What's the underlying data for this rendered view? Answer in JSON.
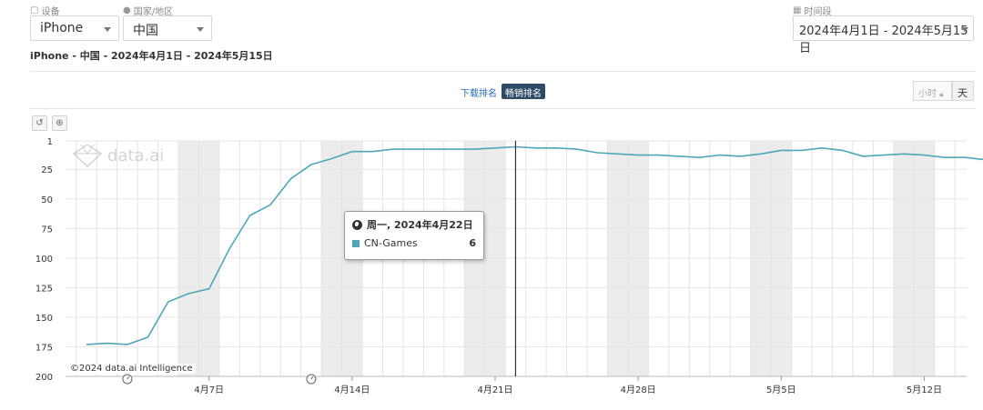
{
  "filters": {
    "device_label": "设备",
    "device_value": "iPhone",
    "country_label": "国家/地区",
    "country_value": "中国",
    "period_label": "时间段",
    "period_value": "2024年4月1日 - 2024年5月15日"
  },
  "subtitle": "iPhone - 中国 - 2024年4月1日 - 2024年5月15日",
  "rank_tabs": {
    "downloads": "下载排名",
    "revenue": "畅销排名"
  },
  "granularity": {
    "hour": "小时",
    "day": "天"
  },
  "toolbar": {
    "reset_icon": "undo-icon",
    "zoom_icon": "zoom-in-icon"
  },
  "watermark": "data.ai",
  "copyright": "©2024 data.ai Intelligence",
  "tooltip": {
    "date": "周一, 2024年4月22日",
    "series": "CN-Games",
    "value": "6"
  },
  "colors": {
    "series": "#4ea7b5",
    "active_tab": "#2f4a66",
    "weekend_band": "#ececec"
  },
  "chart_data": {
    "type": "line",
    "x_start_date": "2024-04-01",
    "y_axis_reversed": true,
    "ylim": [
      1,
      200
    ],
    "y_ticks": [
      1,
      25,
      50,
      75,
      100,
      125,
      150,
      175,
      200
    ],
    "x_tick_labels": [
      "4月7日",
      "4月14日",
      "4月21日",
      "4月28日",
      "5月5日",
      "5月12日"
    ],
    "series": [
      {
        "name": "CN-Games",
        "values": [
          173,
          172,
          173,
          167,
          137,
          130,
          126,
          92,
          64,
          55,
          33,
          21,
          16,
          10,
          10,
          8,
          8,
          8,
          8,
          8,
          7,
          6,
          7,
          7,
          8,
          11,
          12,
          13,
          13,
          14,
          15,
          13,
          14,
          12,
          9,
          9,
          7,
          9,
          14,
          13,
          12,
          13,
          15,
          15,
          17
        ]
      }
    ]
  }
}
